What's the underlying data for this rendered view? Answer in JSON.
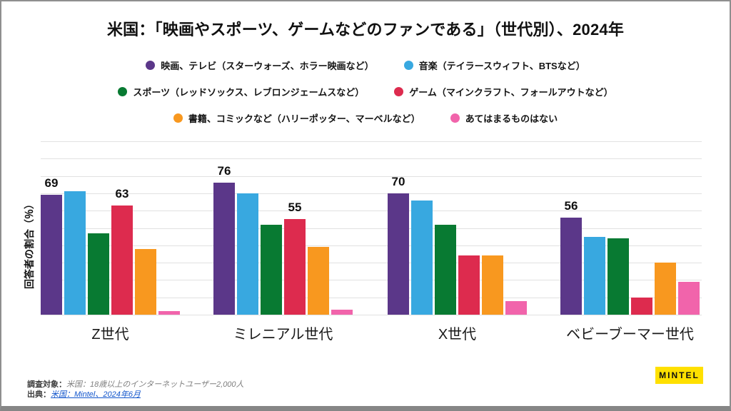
{
  "chart_data": {
    "type": "bar",
    "title": "米国：「映画やスポーツ、ゲームなどのファンである」（世代別）、2024年",
    "xlabel": "",
    "ylabel": "回答者の割合（％）",
    "ylim": [
      0,
      100
    ],
    "grid": true,
    "grid_step": 10,
    "legend_position": "top",
    "legend_rows": [
      [
        0,
        1
      ],
      [
        2,
        3
      ],
      [
        4,
        5
      ]
    ],
    "categories": [
      "Z世代",
      "ミレニアル世代",
      "X世代",
      "ベビーブーマー世代"
    ],
    "series": [
      {
        "name": "映画、テレビ（スターウォーズ、ホラー映画など）",
        "color": "#5B3789",
        "values": [
          69,
          76,
          70,
          56
        ]
      },
      {
        "name": "音楽（テイラースウィフト、BTSなど）",
        "color": "#38A8E0",
        "values": [
          71,
          70,
          66,
          45
        ]
      },
      {
        "name": "スポーツ（レッドソックス、レブロンジェームスなど）",
        "color": "#087A32",
        "values": [
          47,
          52,
          52,
          44
        ]
      },
      {
        "name": "ゲーム（マインクラフト、フォールアウトなど）",
        "color": "#DD2B4E",
        "values": [
          63,
          55,
          34,
          10
        ]
      },
      {
        "name": "書籍、コミックなど（ハリーポッター、マーベルなど）",
        "color": "#F8981F",
        "values": [
          38,
          39,
          34,
          30
        ]
      },
      {
        "name": "あてはまるものはない",
        "color": "#F164AB",
        "values": [
          2,
          3,
          8,
          19
        ]
      }
    ],
    "shown_labels": [
      {
        "category": 0,
        "series": 0,
        "value": "69"
      },
      {
        "category": 0,
        "series": 3,
        "value": "63"
      },
      {
        "category": 1,
        "series": 0,
        "value": "76"
      },
      {
        "category": 1,
        "series": 3,
        "value": "55"
      },
      {
        "category": 2,
        "series": 0,
        "value": "70"
      },
      {
        "category": 3,
        "series": 0,
        "value": "56"
      }
    ]
  },
  "footer": {
    "survey_label": "調査対象：",
    "survey_text": "米国：18歳以上のインターネットユーザー2,000人",
    "source_label": "出典：",
    "source_link": "米国：Mintel、2024年6月"
  },
  "logo": {
    "text": "MINTEL",
    "bg": "#FFE000"
  }
}
